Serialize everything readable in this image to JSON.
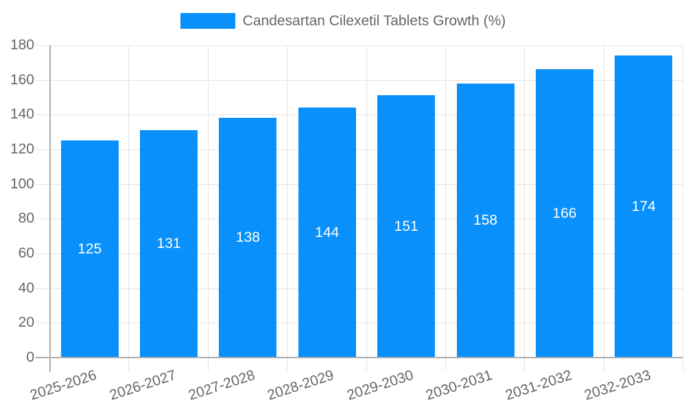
{
  "legend": {
    "label": "Candesartan Cilexetil Tablets Growth (%)"
  },
  "colors": {
    "bar": "#0a90fa",
    "bar_value_text": "#ffffff",
    "axis_text": "#666666",
    "legend_text": "#666666",
    "gridline": "#e3e3e3",
    "axis_line": "#adadad",
    "background": "#ffffff"
  },
  "chart_data": {
    "type": "bar",
    "title": "Candesartan Cilexetil Tablets Growth (%)",
    "categories": [
      "2025-2026",
      "2026-2027",
      "2027-2028",
      "2028-2029",
      "2029-2030",
      "2030-2031",
      "2031-2032",
      "2032-2033"
    ],
    "values": [
      125,
      131,
      138,
      144,
      151,
      158,
      166,
      174
    ],
    "xlabel": "",
    "ylabel": "",
    "ylim": [
      0,
      180
    ],
    "yticks": [
      0,
      20,
      40,
      60,
      80,
      100,
      120,
      140,
      160,
      180
    ],
    "grid": true,
    "legend_position": "top-center",
    "value_labels": "inside-center",
    "x_label_rotation_deg": -18
  }
}
